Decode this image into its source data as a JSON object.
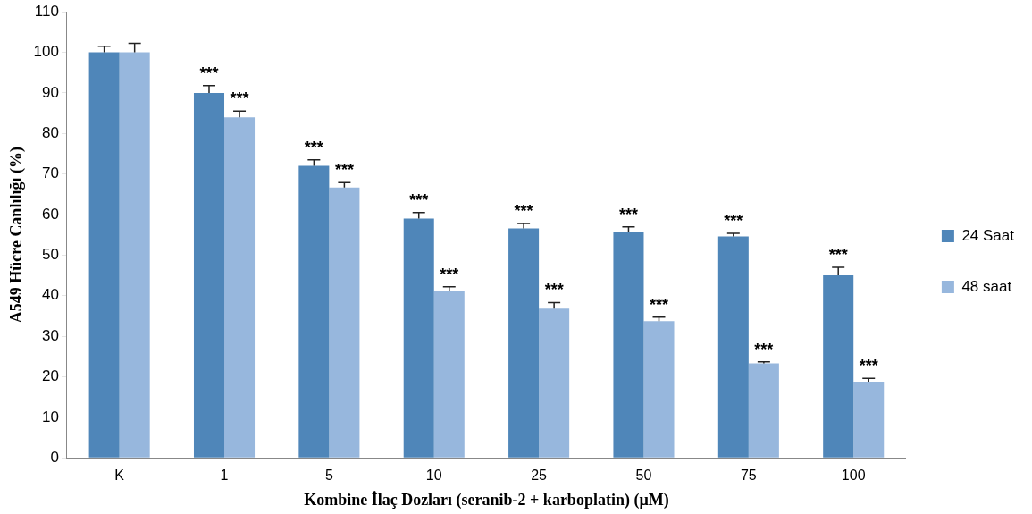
{
  "chart_data": {
    "type": "bar",
    "xlabel": "Kombine İlaç Dozları (seranib-2 + karboplatin) (µM)",
    "ylabel": "A549 Hücre Canlılığı (%)",
    "categories": [
      "K",
      "1",
      "5",
      "10",
      "25",
      "50",
      "75",
      "100"
    ],
    "series": [
      {
        "name": "24 Saat",
        "color": "#4f86b9",
        "values": [
          100,
          90,
          72,
          59,
          56.6,
          55.8,
          54.6,
          45
        ],
        "errors": [
          1.5,
          1.8,
          1.5,
          1.5,
          1.2,
          1.2,
          0.8,
          2
        ]
      },
      {
        "name": "48 saat",
        "color": "#97b7dd",
        "values": [
          100,
          84,
          66.7,
          41.2,
          36.8,
          33.7,
          23.3,
          18.8
        ],
        "errors": [
          2.2,
          1.5,
          1.2,
          1,
          1.5,
          1,
          0.4,
          0.8
        ]
      }
    ],
    "ylim": [
      0,
      110
    ],
    "yticks": [
      0,
      10,
      20,
      30,
      40,
      50,
      60,
      70,
      80,
      90,
      100,
      110
    ],
    "grid": false,
    "legend": "right",
    "annotations": [
      {
        "text": "***",
        "x": "1",
        "y": 90
      },
      {
        "text": "***",
        "x": "1",
        "y": 84
      },
      {
        "text": "***",
        "x": "5",
        "y": 72
      },
      {
        "text": "***",
        "x": "5",
        "y": 66.7
      },
      {
        "text": "***",
        "x": "10",
        "y": 59
      },
      {
        "text": "***",
        "x": "10",
        "y": 41.2
      },
      {
        "text": "***",
        "x": "25",
        "y": 56.6
      },
      {
        "text": "***",
        "x": "25",
        "y": 36.8
      },
      {
        "text": "***",
        "x": "50",
        "y": 55.8
      },
      {
        "text": "***",
        "x": "50",
        "y": 33.7
      },
      {
        "text": "***",
        "x": "75",
        "y": 54.6
      },
      {
        "text": "***",
        "x": "75",
        "y": 23.3
      },
      {
        "text": "***",
        "x": "100",
        "y": 45
      },
      {
        "text": "***",
        "x": "100",
        "y": 18.8
      }
    ]
  }
}
